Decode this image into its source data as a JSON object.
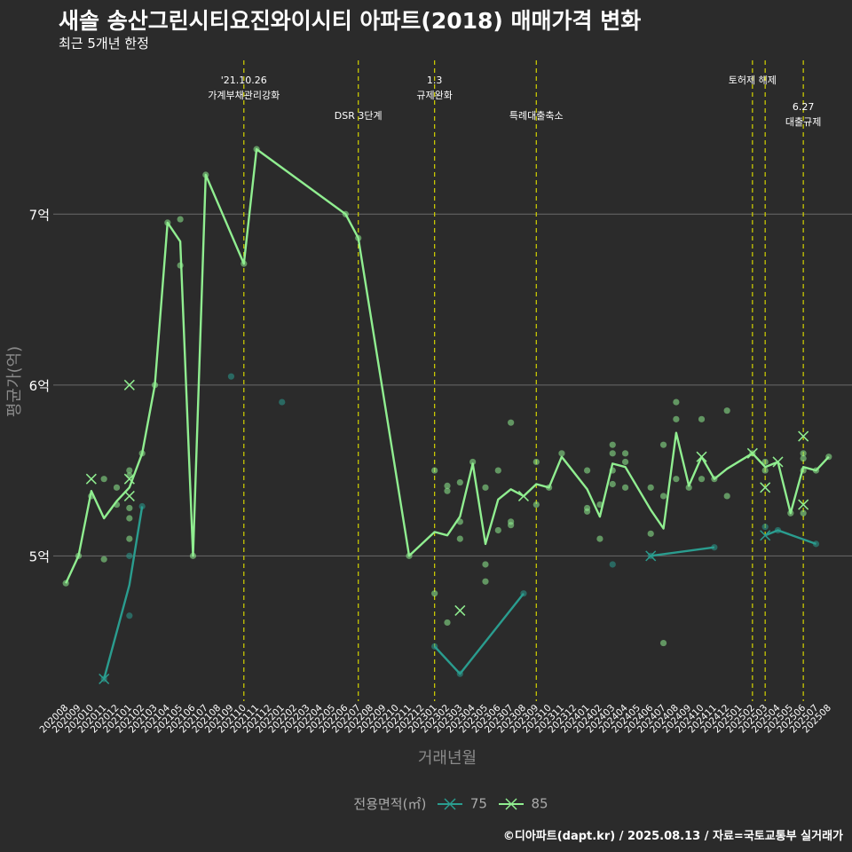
{
  "title": "새솔 송산그린시티요진와이시티 아파트(2018) 매매가격 변화",
  "subtitle": "최근 5개년 한정",
  "caption": "©디아파트(dapt.kr) / 2025.08.13 / 자료=국토교통부 실거래가",
  "legend": {
    "title": "전용면적(㎡)",
    "items": [
      {
        "label": "75",
        "color": "#2a9d8f"
      },
      {
        "label": "85",
        "color": "#90ee90"
      }
    ]
  },
  "chart_data": {
    "type": "line",
    "xlabel": "거래년월",
    "ylabel": "평균가(억)",
    "ylim": [
      4.15,
      7.9
    ],
    "yticks": [
      {
        "value": 5,
        "label": "5억"
      },
      {
        "value": 6,
        "label": "6억"
      },
      {
        "value": 7,
        "label": "7억"
      }
    ],
    "categories": [
      "202008",
      "202009",
      "202010",
      "202011",
      "202012",
      "202101",
      "202102",
      "202103",
      "202104",
      "202105",
      "202106",
      "202107",
      "202108",
      "202109",
      "202110",
      "202111",
      "202112",
      "202201",
      "202202",
      "202203",
      "202204",
      "202205",
      "202206",
      "202207",
      "202208",
      "202209",
      "202210",
      "202211",
      "202212",
      "202301",
      "202302",
      "202303",
      "202304",
      "202305",
      "202306",
      "202307",
      "202308",
      "202309",
      "202310",
      "202311",
      "202312",
      "202401",
      "202402",
      "202403",
      "202404",
      "202405",
      "202406",
      "202407",
      "202408",
      "202409",
      "202410",
      "202411",
      "202412",
      "202501",
      "202502",
      "202503",
      "202504",
      "202505",
      "202506",
      "202507",
      "202508"
    ],
    "annotations": [
      {
        "x": "202110",
        "lines": [
          "'21.10.26",
          "가계부채관리강화"
        ],
        "level": 1
      },
      {
        "x": "202207",
        "lines": [
          "DSR 3단계"
        ],
        "level": 2
      },
      {
        "x": "202301",
        "lines": [
          "1.3",
          "규제완화"
        ],
        "level": 1
      },
      {
        "x": "202309",
        "lines": [
          "특례대출축소"
        ],
        "level": 2
      },
      {
        "x": "202502",
        "lines": [
          "토허제 해제"
        ],
        "level": 1
      },
      {
        "x": "202503",
        "lines": [],
        "level": 1
      },
      {
        "x": "202506",
        "lines": [
          "6.27",
          "대출규제"
        ],
        "level": 2
      }
    ],
    "series": [
      {
        "name": "75",
        "color": "#2a9d8f",
        "line": [
          {
            "x": "202011",
            "y": 4.28
          },
          {
            "x": "202101",
            "y": 4.83
          },
          {
            "x": "202102",
            "y": 5.29
          }
        ],
        "line2": [
          {
            "x": "202301",
            "y": 4.47
          },
          {
            "x": "202303",
            "y": 4.31
          },
          {
            "x": "202308",
            "y": 4.78
          }
        ],
        "line3": [
          {
            "x": "202406",
            "y": 5.0
          },
          {
            "x": "202411",
            "y": 5.05
          }
        ],
        "line4": [
          {
            "x": "202503",
            "y": 5.12
          },
          {
            "x": "202504",
            "y": 5.15
          },
          {
            "x": "202507",
            "y": 5.07
          }
        ],
        "points": [
          {
            "x": "202011",
            "y": 4.28
          },
          {
            "x": "202101",
            "y": 4.65
          },
          {
            "x": "202101",
            "y": 5.0
          },
          {
            "x": "202102",
            "y": 5.29
          },
          {
            "x": "202109",
            "y": 6.05
          },
          {
            "x": "202201",
            "y": 5.9
          },
          {
            "x": "202301",
            "y": 4.47
          },
          {
            "x": "202303",
            "y": 4.31
          },
          {
            "x": "202308",
            "y": 4.78
          },
          {
            "x": "202403",
            "y": 4.95
          },
          {
            "x": "202406",
            "y": 5.0
          },
          {
            "x": "202411",
            "y": 5.05
          },
          {
            "x": "202503",
            "y": 5.17
          },
          {
            "x": "202504",
            "y": 5.15
          },
          {
            "x": "202507",
            "y": 5.07
          }
        ],
        "crosses": [
          {
            "x": "202011",
            "y": 4.28
          },
          {
            "x": "202406",
            "y": 5.0
          },
          {
            "x": "202503",
            "y": 5.12
          }
        ]
      },
      {
        "name": "85",
        "color": "#90ee90",
        "line": [
          {
            "x": "202008",
            "y": 4.84
          },
          {
            "x": "202009",
            "y": 5.0
          },
          {
            "x": "202010",
            "y": 5.38
          },
          {
            "x": "202011",
            "y": 5.22
          },
          {
            "x": "202012",
            "y": 5.32
          },
          {
            "x": "202101",
            "y": 5.4
          },
          {
            "x": "202102",
            "y": 5.6
          },
          {
            "x": "202103",
            "y": 6.0
          },
          {
            "x": "202104",
            "y": 6.95
          },
          {
            "x": "202105",
            "y": 6.84
          },
          {
            "x": "202106",
            "y": 5.0
          },
          {
            "x": "202107",
            "y": 7.23
          },
          {
            "x": "202110",
            "y": 6.71
          },
          {
            "x": "202111",
            "y": 7.38
          },
          {
            "x": "202206",
            "y": 7.0
          },
          {
            "x": "202207",
            "y": 6.86
          },
          {
            "x": "202211",
            "y": 5.0
          },
          {
            "x": "202301",
            "y": 5.14
          },
          {
            "x": "202302",
            "y": 5.12
          },
          {
            "x": "202303",
            "y": 5.23
          },
          {
            "x": "202304",
            "y": 5.54
          },
          {
            "x": "202305",
            "y": 5.07
          },
          {
            "x": "202306",
            "y": 5.33
          },
          {
            "x": "202307",
            "y": 5.39
          },
          {
            "x": "202308",
            "y": 5.35
          },
          {
            "x": "202309",
            "y": 5.42
          },
          {
            "x": "202310",
            "y": 5.4
          },
          {
            "x": "202311",
            "y": 5.58
          },
          {
            "x": "202401",
            "y": 5.39
          },
          {
            "x": "202402",
            "y": 5.23
          },
          {
            "x": "202403",
            "y": 5.54
          },
          {
            "x": "202404",
            "y": 5.52
          },
          {
            "x": "202406",
            "y": 5.27
          },
          {
            "x": "202407",
            "y": 5.16
          },
          {
            "x": "202408",
            "y": 5.72
          },
          {
            "x": "202409",
            "y": 5.41
          },
          {
            "x": "202410",
            "y": 5.58
          },
          {
            "x": "202411",
            "y": 5.45
          },
          {
            "x": "202412",
            "y": 5.51
          },
          {
            "x": "202502",
            "y": 5.6
          },
          {
            "x": "202503",
            "y": 5.52
          },
          {
            "x": "202504",
            "y": 5.55
          },
          {
            "x": "202505",
            "y": 5.25
          },
          {
            "x": "202506",
            "y": 5.52
          },
          {
            "x": "202507",
            "y": 5.5
          },
          {
            "x": "202508",
            "y": 5.58
          }
        ],
        "points": [
          {
            "x": "202008",
            "y": 4.84
          },
          {
            "x": "202009",
            "y": 5.0
          },
          {
            "x": "202010",
            "y": 5.35
          },
          {
            "x": "202011",
            "y": 5.45
          },
          {
            "x": "202011",
            "y": 4.98
          },
          {
            "x": "202012",
            "y": 5.3
          },
          {
            "x": "202012",
            "y": 5.4
          },
          {
            "x": "202101",
            "y": 5.5
          },
          {
            "x": "202101",
            "y": 5.47
          },
          {
            "x": "202101",
            "y": 5.28
          },
          {
            "x": "202101",
            "y": 5.22
          },
          {
            "x": "202101",
            "y": 5.1
          },
          {
            "x": "202102",
            "y": 5.6
          },
          {
            "x": "202103",
            "y": 6.0
          },
          {
            "x": "202104",
            "y": 6.95
          },
          {
            "x": "202105",
            "y": 6.97
          },
          {
            "x": "202105",
            "y": 6.7
          },
          {
            "x": "202106",
            "y": 5.0
          },
          {
            "x": "202107",
            "y": 7.23
          },
          {
            "x": "202110",
            "y": 6.71
          },
          {
            "x": "202111",
            "y": 7.38
          },
          {
            "x": "202206",
            "y": 7.0
          },
          {
            "x": "202207",
            "y": 6.86
          },
          {
            "x": "202211",
            "y": 5.0
          },
          {
            "x": "202301",
            "y": 5.5
          },
          {
            "x": "202301",
            "y": 4.78
          },
          {
            "x": "202302",
            "y": 5.41
          },
          {
            "x": "202302",
            "y": 5.38
          },
          {
            "x": "202302",
            "y": 4.61
          },
          {
            "x": "202303",
            "y": 5.43
          },
          {
            "x": "202303",
            "y": 5.2
          },
          {
            "x": "202303",
            "y": 5.1
          },
          {
            "x": "202304",
            "y": 5.55
          },
          {
            "x": "202305",
            "y": 5.4
          },
          {
            "x": "202305",
            "y": 4.95
          },
          {
            "x": "202305",
            "y": 4.85
          },
          {
            "x": "202306",
            "y": 5.5
          },
          {
            "x": "202306",
            "y": 5.15
          },
          {
            "x": "202307",
            "y": 5.78
          },
          {
            "x": "202307",
            "y": 5.2
          },
          {
            "x": "202307",
            "y": 5.18
          },
          {
            "x": "202309",
            "y": 5.55
          },
          {
            "x": "202309",
            "y": 5.3
          },
          {
            "x": "202310",
            "y": 5.4
          },
          {
            "x": "202311",
            "y": 5.6
          },
          {
            "x": "202401",
            "y": 5.5
          },
          {
            "x": "202401",
            "y": 5.28
          },
          {
            "x": "202401",
            "y": 5.26
          },
          {
            "x": "202402",
            "y": 5.3
          },
          {
            "x": "202402",
            "y": 5.1
          },
          {
            "x": "202403",
            "y": 5.65
          },
          {
            "x": "202403",
            "y": 5.6
          },
          {
            "x": "202403",
            "y": 5.5
          },
          {
            "x": "202403",
            "y": 5.42
          },
          {
            "x": "202404",
            "y": 5.6
          },
          {
            "x": "202404",
            "y": 5.55
          },
          {
            "x": "202404",
            "y": 5.4
          },
          {
            "x": "202406",
            "y": 5.4
          },
          {
            "x": "202406",
            "y": 5.13
          },
          {
            "x": "202407",
            "y": 5.65
          },
          {
            "x": "202407",
            "y": 5.35
          },
          {
            "x": "202407",
            "y": 4.49
          },
          {
            "x": "202408",
            "y": 5.9
          },
          {
            "x": "202408",
            "y": 5.8
          },
          {
            "x": "202408",
            "y": 5.45
          },
          {
            "x": "202409",
            "y": 5.4
          },
          {
            "x": "202410",
            "y": 5.8
          },
          {
            "x": "202410",
            "y": 5.45
          },
          {
            "x": "202411",
            "y": 5.45
          },
          {
            "x": "202412",
            "y": 5.85
          },
          {
            "x": "202412",
            "y": 5.35
          },
          {
            "x": "202502",
            "y": 5.6
          },
          {
            "x": "202503",
            "y": 5.55
          },
          {
            "x": "202503",
            "y": 5.5
          },
          {
            "x": "202505",
            "y": 5.25
          },
          {
            "x": "202506",
            "y": 5.6
          },
          {
            "x": "202506",
            "y": 5.57
          },
          {
            "x": "202506",
            "y": 5.5
          },
          {
            "x": "202506",
            "y": 5.25
          },
          {
            "x": "202507",
            "y": 5.5
          },
          {
            "x": "202508",
            "y": 5.58
          }
        ],
        "crosses": [
          {
            "x": "202010",
            "y": 5.45
          },
          {
            "x": "202101",
            "y": 6.0
          },
          {
            "x": "202101",
            "y": 5.45
          },
          {
            "x": "202101",
            "y": 5.35
          },
          {
            "x": "202303",
            "y": 4.68
          },
          {
            "x": "202308",
            "y": 5.35
          },
          {
            "x": "202410",
            "y": 5.58
          },
          {
            "x": "202502",
            "y": 5.6
          },
          {
            "x": "202503",
            "y": 5.4
          },
          {
            "x": "202504",
            "y": 5.55
          },
          {
            "x": "202506",
            "y": 5.7
          },
          {
            "x": "202506",
            "y": 5.3
          }
        ]
      }
    ]
  }
}
